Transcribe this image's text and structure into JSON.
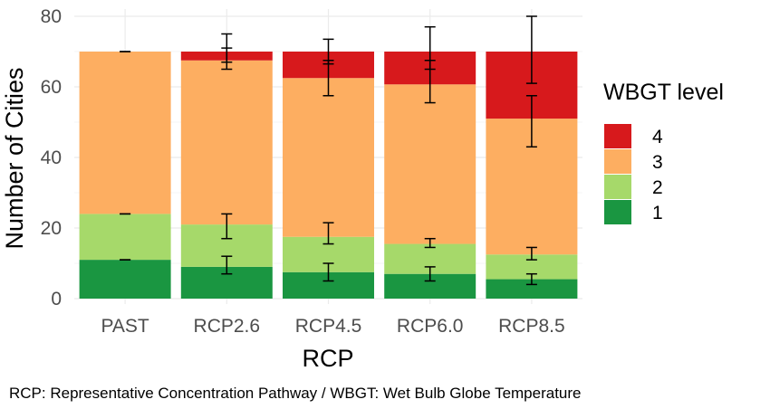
{
  "chart_data": {
    "type": "bar",
    "stacked": true,
    "xlabel": "RCP",
    "ylabel": "Number of Cities",
    "ylim": [
      0,
      80
    ],
    "yticks": [
      0,
      20,
      40,
      60,
      80
    ],
    "categories": [
      "PAST",
      "RCP2.6",
      "RCP4.5",
      "RCP6.0",
      "RCP8.5"
    ],
    "grid": true,
    "legend": {
      "title": "WBGT level",
      "placement": "right",
      "entries": [
        {
          "label": "4",
          "color": "#d7191c"
        },
        {
          "label": "3",
          "color": "#fdae61"
        },
        {
          "label": "2",
          "color": "#a6d96a"
        },
        {
          "label": "1",
          "color": "#1a9641"
        }
      ]
    },
    "series": [
      {
        "name": "1",
        "color": "#1a9641",
        "values": [
          11,
          9,
          7.5,
          7,
          5.5
        ]
      },
      {
        "name": "2",
        "color": "#a6d96a",
        "values": [
          13,
          12,
          10,
          8.5,
          7
        ]
      },
      {
        "name": "3",
        "color": "#fdae61",
        "values": [
          46,
          46.5,
          45,
          45.2,
          38.5
        ]
      },
      {
        "name": "4",
        "color": "#d7191c",
        "values": [
          0,
          2.5,
          7.5,
          9.3,
          19
        ]
      }
    ],
    "error_bars": [
      {
        "category": "PAST",
        "level": "1",
        "low": 11,
        "high": 11
      },
      {
        "category": "PAST",
        "level": "2",
        "low": 24,
        "high": 24
      },
      {
        "category": "PAST",
        "level": "3",
        "low": 70,
        "high": 70
      },
      {
        "category": "RCP2.6",
        "level": "1",
        "low": 7,
        "high": 12
      },
      {
        "category": "RCP2.6",
        "level": "2",
        "low": 17,
        "high": 24
      },
      {
        "category": "RCP2.6",
        "level": "3",
        "low": 65,
        "high": 71
      },
      {
        "category": "RCP2.6",
        "level": "4",
        "low": 67,
        "high": 75
      },
      {
        "category": "RCP4.5",
        "level": "1",
        "low": 5,
        "high": 10
      },
      {
        "category": "RCP4.5",
        "level": "2",
        "low": 15.5,
        "high": 21.5
      },
      {
        "category": "RCP4.5",
        "level": "3",
        "low": 57.5,
        "high": 67.5
      },
      {
        "category": "RCP4.5",
        "level": "4",
        "low": 66.5,
        "high": 73.5
      },
      {
        "category": "RCP6.0",
        "level": "1",
        "low": 5,
        "high": 9
      },
      {
        "category": "RCP6.0",
        "level": "2",
        "low": 14.5,
        "high": 17
      },
      {
        "category": "RCP6.0",
        "level": "3",
        "low": 55.5,
        "high": 67.5
      },
      {
        "category": "RCP6.0",
        "level": "4",
        "low": 65,
        "high": 77
      },
      {
        "category": "RCP8.5",
        "level": "1",
        "low": 4,
        "high": 7
      },
      {
        "category": "RCP8.5",
        "level": "2",
        "low": 11,
        "high": 14.5
      },
      {
        "category": "RCP8.5",
        "level": "3",
        "low": 43,
        "high": 57.5
      },
      {
        "category": "RCP8.5",
        "level": "4",
        "low": 61,
        "high": 80
      }
    ]
  },
  "caption": "RCP: Representative Concentration Pathway /  WBGT: Wet Bulb Globe Temperature"
}
